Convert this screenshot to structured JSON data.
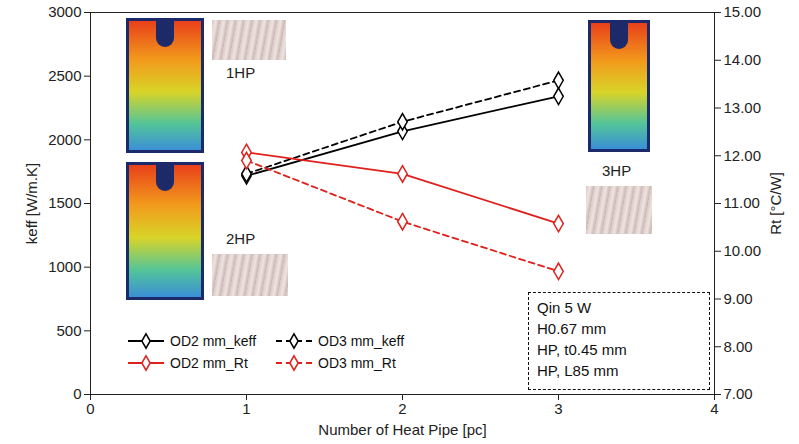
{
  "chart_data": {
    "type": "line",
    "x_label": "Number of Heat Pipe [pc]",
    "y_label": "keff [W/m.K]",
    "y2_label": "Rt [°C/W]",
    "x": [
      1,
      2,
      3
    ],
    "xlim": [
      0,
      4
    ],
    "xticks": [
      0,
      1,
      2,
      3,
      4
    ],
    "ylim": [
      0,
      3000
    ],
    "yticks": [
      0,
      500,
      1000,
      1500,
      2000,
      2500,
      3000
    ],
    "y2lim": [
      7,
      15
    ],
    "y2ticks": [
      {
        "value": 7,
        "label": "7.00"
      },
      {
        "value": 8,
        "label": "8.00"
      },
      {
        "value": 9,
        "label": "9.00"
      },
      {
        "value": 10,
        "label": "10.00"
      },
      {
        "value": 11,
        "label": "11.00"
      },
      {
        "value": 12,
        "label": "12.00"
      },
      {
        "value": 13,
        "label": "13.00"
      },
      {
        "value": 14,
        "label": "14.00"
      },
      {
        "value": 15,
        "label": "15.00"
      }
    ],
    "grid": false,
    "legend": "bottom-left",
    "series": [
      {
        "name": "OD2 mm_keff",
        "color": "#000000",
        "line_style": "solid",
        "marker": "diamond",
        "values": [
          1717,
          2067,
          2342
        ]
      },
      {
        "name": "OD3 mm_keff",
        "color": "#000000",
        "line_style": "dashed",
        "marker": "diamond",
        "values": [
          1733,
          2142,
          2467
        ]
      },
      {
        "name": "OD2 mm_Rt",
        "color": "#e0201b",
        "line_style": "solid",
        "marker": "diamond",
        "axis": "y2",
        "values": [
          12.07,
          11.62,
          10.58
        ]
      },
      {
        "name": "OD3 mm_Rt",
        "color": "#e0201b",
        "line_style": "dashed",
        "marker": "diamond",
        "axis": "y2",
        "values": [
          11.9,
          10.62,
          9.58
        ]
      }
    ],
    "image_labels": [
      "1HP",
      "2HP",
      "3HP"
    ],
    "annotations": [
      "Qin 5 W",
      "H0.67 mm",
      "HP, t0.45 mm",
      "HP, L85 mm"
    ]
  }
}
